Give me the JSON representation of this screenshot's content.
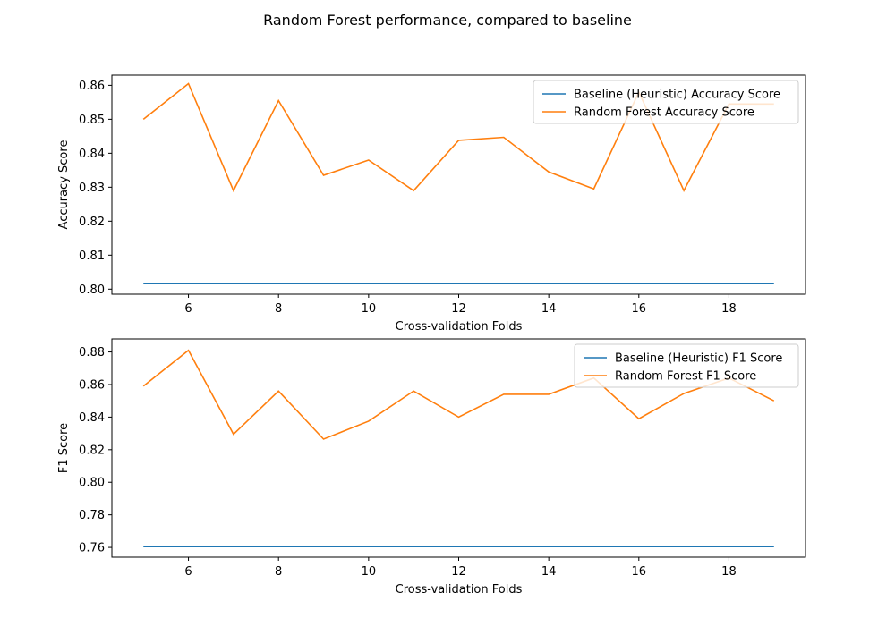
{
  "figure": {
    "title": "Random Forest performance, compared to baseline"
  },
  "chart_data": [
    {
      "type": "line",
      "title": "",
      "xlabel": "Cross-validation Folds",
      "ylabel": "Accuracy Score",
      "xlim": [
        4.3,
        19.7
      ],
      "ylim": [
        0.7985,
        0.863
      ],
      "xticks": [
        6,
        8,
        10,
        12,
        14,
        16,
        18
      ],
      "yticks": [
        0.8,
        0.81,
        0.82,
        0.83,
        0.84,
        0.85,
        0.86
      ],
      "ytick_labels": [
        "0.80",
        "0.81",
        "0.82",
        "0.83",
        "0.84",
        "0.85",
        "0.86"
      ],
      "legend": "top-right",
      "grid": false,
      "x": [
        5,
        6,
        7,
        8,
        9,
        10,
        11,
        12,
        13,
        14,
        15,
        16,
        17,
        18,
        19
      ],
      "series": [
        {
          "name": "Baseline (Heuristic) Accuracy Score",
          "color": "#1f77b4",
          "values": [
            0.8016,
            0.8016,
            0.8016,
            0.8016,
            0.8016,
            0.8016,
            0.8016,
            0.8016,
            0.8016,
            0.8016,
            0.8016,
            0.8016,
            0.8016,
            0.8016,
            0.8016
          ]
        },
        {
          "name": "Random Forest Accuracy Score",
          "color": "#ff7f0e",
          "values": [
            0.85,
            0.8605,
            0.829,
            0.8555,
            0.8335,
            0.838,
            0.829,
            0.8438,
            0.8447,
            0.8345,
            0.8295,
            0.858,
            0.829,
            0.8545,
            0.8545
          ]
        }
      ]
    },
    {
      "type": "line",
      "title": "",
      "xlabel": "Cross-validation Folds",
      "ylabel": "F1 Score",
      "xlim": [
        4.3,
        19.7
      ],
      "ylim": [
        0.754,
        0.888
      ],
      "xticks": [
        6,
        8,
        10,
        12,
        14,
        16,
        18
      ],
      "yticks": [
        0.76,
        0.78,
        0.8,
        0.82,
        0.84,
        0.86,
        0.88
      ],
      "ytick_labels": [
        "0.76",
        "0.78",
        "0.80",
        "0.82",
        "0.84",
        "0.86",
        "0.88"
      ],
      "legend": "top-right",
      "grid": false,
      "x": [
        5,
        6,
        7,
        8,
        9,
        10,
        11,
        12,
        13,
        14,
        15,
        16,
        17,
        18,
        19
      ],
      "series": [
        {
          "name": "Baseline (Heuristic) F1 Score",
          "color": "#1f77b4",
          "values": [
            0.7605,
            0.7605,
            0.7605,
            0.7605,
            0.7605,
            0.7605,
            0.7605,
            0.7605,
            0.7605,
            0.7605,
            0.7605,
            0.7605,
            0.7605,
            0.7605,
            0.7605
          ]
        },
        {
          "name": "Random Forest F1 Score",
          "color": "#ff7f0e",
          "values": [
            0.859,
            0.881,
            0.8295,
            0.856,
            0.8265,
            0.8375,
            0.856,
            0.84,
            0.854,
            0.854,
            0.864,
            0.839,
            0.8545,
            0.864,
            0.85
          ]
        }
      ]
    }
  ]
}
